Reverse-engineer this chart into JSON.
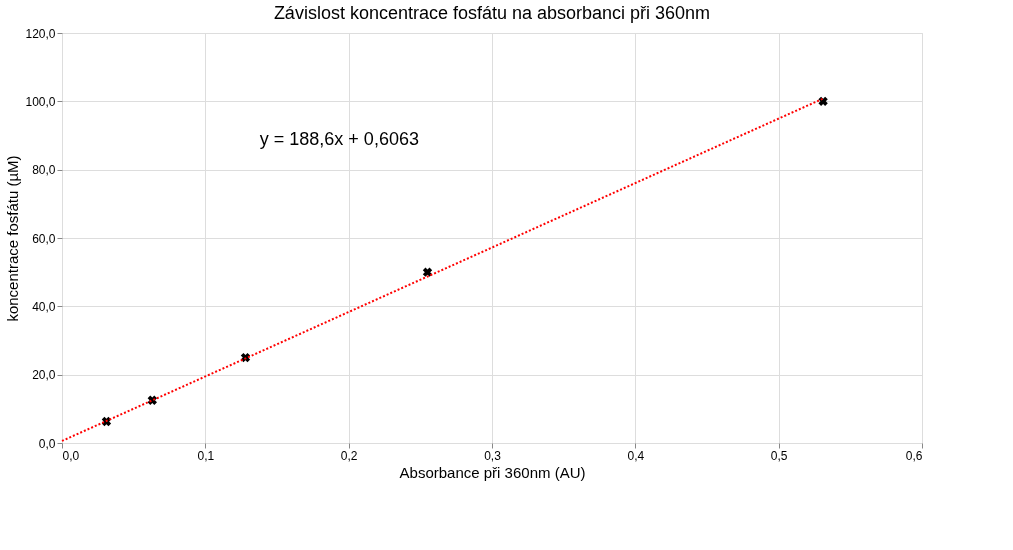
{
  "chart_data": {
    "type": "scatter",
    "title": "Závislost koncentrace fosfátu na absorbanci při 360nm",
    "xlabel": "Absorbance při 360nm (AU)",
    "ylabel": "koncentrace fosfátu (µM)",
    "series": [
      {
        "type": "scatter",
        "color": "#000000",
        "marker": "cross",
        "x": [
          0.031,
          0.063,
          0.128,
          0.255,
          0.531
        ],
        "values": [
          6.3,
          12.5,
          25,
          50,
          100
        ]
      },
      {
        "type": "line",
        "color": "#ff0000",
        "line_style": "dotted",
        "x": [
          0,
          0.531
        ],
        "values": [
          0.6,
          100.8
        ]
      }
    ],
    "xlim": [
      0,
      0.6
    ],
    "ylim": [
      0,
      120
    ],
    "xticks": [
      {
        "value": 0,
        "label": "0,0"
      },
      {
        "value": 0.1,
        "label": "0,1"
      },
      {
        "value": 0.2,
        "label": "0,2"
      },
      {
        "value": 0.3,
        "label": "0,3"
      },
      {
        "value": 0.4,
        "label": "0,4"
      },
      {
        "value": 0.5,
        "label": "0,5"
      },
      {
        "value": 0.6,
        "label": "0,6"
      }
    ],
    "yticks": [
      {
        "value": 0,
        "label": "0,0"
      },
      {
        "value": 20,
        "label": "20,0"
      },
      {
        "value": 40,
        "label": "40,0"
      },
      {
        "value": 60,
        "label": "60,0"
      },
      {
        "value": 80,
        "label": "80,0"
      },
      {
        "value": 100,
        "label": "100,0"
      },
      {
        "value": 120,
        "label": "120,0"
      }
    ],
    "annotations": [
      "y = 188,6x + 0,6063"
    ],
    "grid": true
  }
}
